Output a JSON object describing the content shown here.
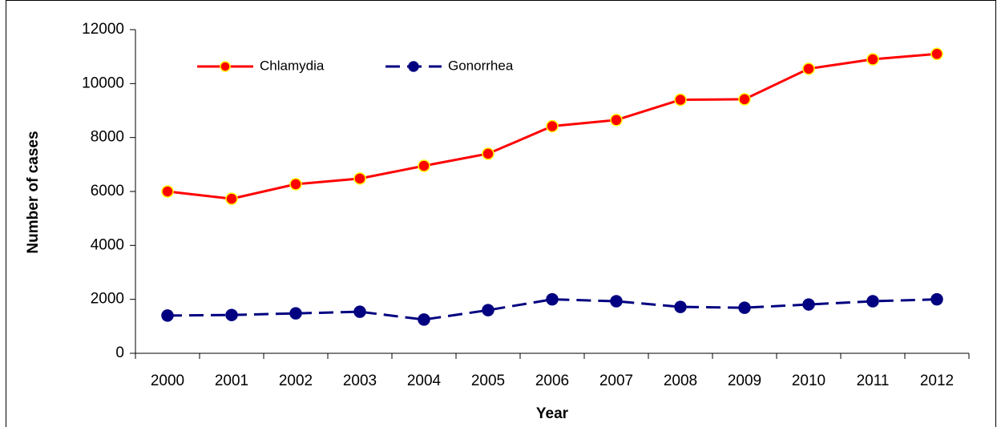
{
  "chart_data": {
    "type": "line",
    "xlabel": "Year",
    "ylabel": "Number of cases",
    "categories": [
      "2000",
      "2001",
      "2002",
      "2003",
      "2004",
      "2005",
      "2006",
      "2007",
      "2008",
      "2009",
      "2010",
      "2011",
      "2012"
    ],
    "series": [
      {
        "name": "Chlamydia",
        "color": "#ff0000",
        "marker_edge": "#ffff00",
        "dashed": false,
        "values": [
          6000,
          5730,
          6270,
          6480,
          6950,
          7400,
          8420,
          8650,
          9400,
          9420,
          10550,
          10900,
          11100
        ]
      },
      {
        "name": "Gonorrhea",
        "color": "#000080",
        "marker_edge": "#000080",
        "dashed": true,
        "values": [
          1400,
          1420,
          1480,
          1540,
          1250,
          1600,
          2000,
          1930,
          1720,
          1690,
          1810,
          1930,
          2000
        ]
      }
    ],
    "ylim": [
      0,
      12000
    ],
    "yticks": [
      0,
      2000,
      4000,
      6000,
      8000,
      10000,
      12000
    ],
    "legend": "top-left"
  }
}
